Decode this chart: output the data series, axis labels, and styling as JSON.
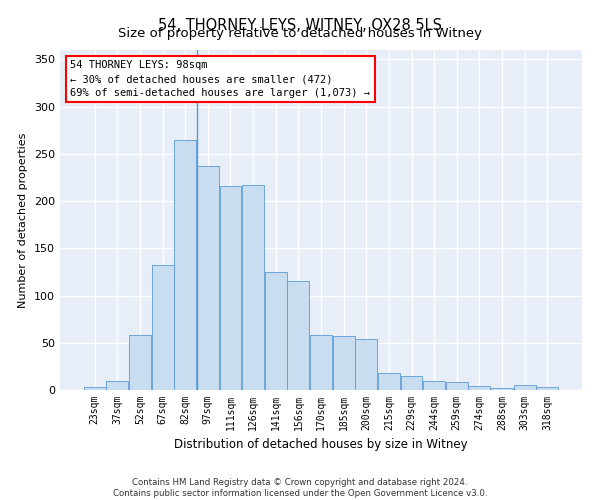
{
  "title": "54, THORNEY LEYS, WITNEY, OX28 5LS",
  "subtitle": "Size of property relative to detached houses in Witney",
  "xlabel": "Distribution of detached houses by size in Witney",
  "ylabel": "Number of detached properties",
  "categories": [
    "23sqm",
    "37sqm",
    "52sqm",
    "67sqm",
    "82sqm",
    "97sqm",
    "111sqm",
    "126sqm",
    "141sqm",
    "156sqm",
    "170sqm",
    "185sqm",
    "200sqm",
    "215sqm",
    "229sqm",
    "244sqm",
    "259sqm",
    "274sqm",
    "288sqm",
    "303sqm",
    "318sqm"
  ],
  "values": [
    3,
    10,
    58,
    132,
    265,
    237,
    216,
    217,
    125,
    115,
    58,
    57,
    54,
    18,
    15,
    10,
    8,
    4,
    2,
    5,
    3
  ],
  "bar_color": "#c9ddf0",
  "bar_edge_color": "#5b9bd5",
  "highlight_vline_index": 5,
  "annotation_text": "54 THORNEY LEYS: 98sqm\n← 30% of detached houses are smaller (472)\n69% of semi-detached houses are larger (1,073) →",
  "ylim": [
    0,
    360
  ],
  "yticks": [
    0,
    50,
    100,
    150,
    200,
    250,
    300,
    350
  ],
  "background_color": "#ffffff",
  "plot_bg_color": "#e8eef8",
  "grid_color": "#ffffff",
  "footer_line1": "Contains HM Land Registry data © Crown copyright and database right 2024.",
  "footer_line2": "Contains public sector information licensed under the Open Government Licence v3.0.",
  "title_fontsize": 10.5,
  "subtitle_fontsize": 9.5,
  "tick_fontsize": 7,
  "ylabel_fontsize": 8,
  "xlabel_fontsize": 8.5
}
